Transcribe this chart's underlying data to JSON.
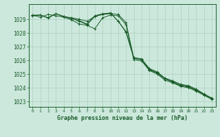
{
  "title": "Graphe pression niveau de la mer (hPa)",
  "background_color": "#cce8dc",
  "grid_color": "#aacfbf",
  "line_color": "#1a5c2a",
  "x_ticks": [
    0,
    1,
    2,
    3,
    4,
    5,
    6,
    7,
    8,
    9,
    10,
    11,
    12,
    13,
    14,
    15,
    16,
    17,
    18,
    19,
    20,
    21,
    22,
    23
  ],
  "ylim": [
    1022.6,
    1030.1
  ],
  "yticks": [
    1023,
    1024,
    1025,
    1026,
    1027,
    1028,
    1029
  ],
  "series": [
    [
      1029.3,
      1029.3,
      1029.1,
      1029.4,
      1029.2,
      1029.1,
      1029.0,
      1028.85,
      1029.2,
      1029.35,
      1029.4,
      1029.35,
      1028.75,
      1026.15,
      1026.05,
      1025.35,
      1025.1,
      1024.65,
      1024.45,
      1024.2,
      1024.1,
      1023.85,
      1023.5,
      1023.2
    ],
    [
      1029.3,
      1029.15,
      1029.35,
      1029.25,
      1029.15,
      1028.95,
      1028.65,
      1028.55,
      1028.3,
      1029.1,
      1029.3,
      1029.25,
      1028.6,
      1026.05,
      1025.95,
      1025.25,
      1025.0,
      1024.55,
      1024.35,
      1024.1,
      1024.0,
      1023.75,
      1023.45,
      1023.15
    ],
    [
      1029.25,
      1029.3,
      1029.1,
      1029.4,
      1029.2,
      1029.05,
      1028.9,
      1028.65,
      1029.25,
      1029.4,
      1029.45,
      1028.85,
      1028.1,
      1026.2,
      1026.1,
      1025.4,
      1025.15,
      1024.7,
      1024.5,
      1024.25,
      1024.15,
      1023.9,
      1023.55,
      1023.25
    ],
    [
      1029.25,
      1029.3,
      1029.1,
      1029.4,
      1029.2,
      1029.05,
      1028.85,
      1028.6,
      1029.2,
      1029.35,
      1029.45,
      1028.85,
      1028.05,
      1026.15,
      1026.05,
      1025.3,
      1025.05,
      1024.65,
      1024.4,
      1024.15,
      1024.05,
      1023.8,
      1023.5,
      1023.2
    ]
  ]
}
